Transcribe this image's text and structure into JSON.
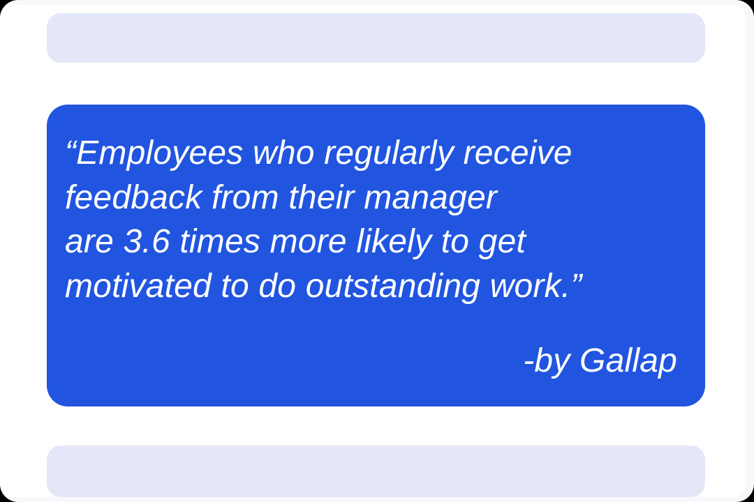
{
  "page": {
    "outer_background_color": "#000000",
    "screen_background_color": "#f7f8fa",
    "slide_background_color": "#ffffff"
  },
  "placeholder_blocks": {
    "background_color": "#e3e7f8"
  },
  "quote_card": {
    "background_color": "#2155e0",
    "text_color": "#ffffff",
    "lines": [
      "“Employees who regularly receive",
      "feedback from their manager",
      "are 3.6 times more likely to get",
      "motivated to do outstanding work.”"
    ],
    "attribution": "-by Gallap"
  }
}
